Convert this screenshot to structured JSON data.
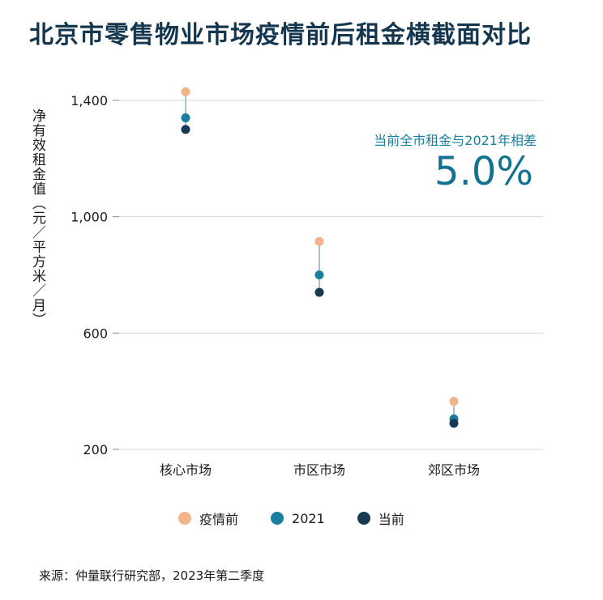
{
  "chart_data": {
    "type": "dot-range",
    "title": "北京市零售物业市场疫情前后租金横截面对比",
    "ylabel": "净有效租金值（元／平方米／月）",
    "xlabel": "",
    "ylim": [
      200,
      1500
    ],
    "yticks": [
      200,
      600,
      1000,
      1400
    ],
    "ytick_labels": [
      "200",
      "600",
      "1,000",
      "1,400"
    ],
    "categories": [
      "核心市场",
      "市区市场",
      "郊区市场"
    ],
    "series": [
      {
        "name": "疫情前",
        "color": "#f2b48a",
        "values": [
          1430,
          915,
          365
        ]
      },
      {
        "name": "2021",
        "color": "#1a7f9c",
        "values": [
          1340,
          800,
          305
        ]
      },
      {
        "name": "当前",
        "color": "#153a52",
        "values": [
          1300,
          740,
          290
        ]
      }
    ],
    "annotation": {
      "label": "当前全市租金与2021年相差",
      "value": "5.0%"
    },
    "source": "来源：仲量联行研究部，2023年第二季度"
  },
  "colors": {
    "title": "#14374f",
    "accent": "#1a7f9c",
    "connector": "#a8c3cc",
    "grid": "#d9d9d9"
  }
}
